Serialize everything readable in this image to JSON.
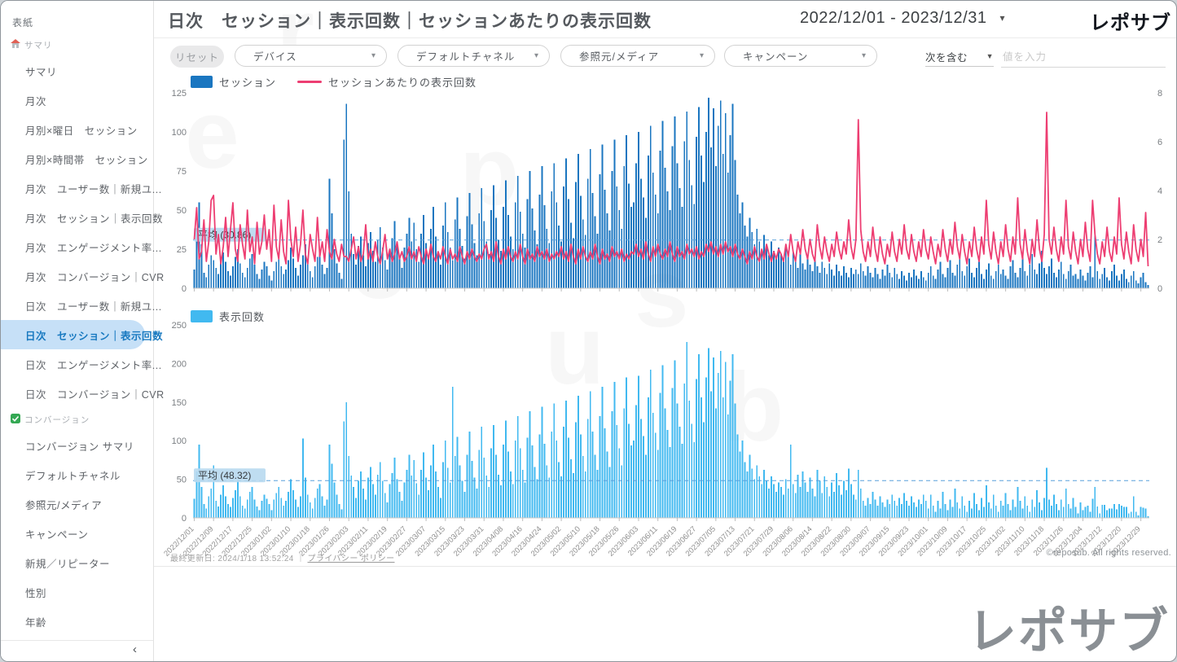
{
  "accent_colors": {
    "session_bar": "#1a76c0",
    "views_bar": "#41b9f0",
    "line_pink": "#ed3e72",
    "avg_line": "#58a0dc",
    "avg_badge_bg": "#b8d9f0",
    "active_item_bg": "#c6e0f7",
    "active_item_text": "#1879c0"
  },
  "watermark_text": "reposub",
  "sidebar": {
    "collapse_icon": "‹",
    "items": [
      {
        "type": "top",
        "label": "表紙"
      },
      {
        "type": "group",
        "icon": "home",
        "label": "サマリ"
      },
      {
        "type": "link",
        "label": "サマリ"
      },
      {
        "type": "link",
        "label": "月次"
      },
      {
        "type": "link",
        "label": "月別×曜日　セッション"
      },
      {
        "type": "link",
        "label": "月別×時間帯　セッション"
      },
      {
        "type": "link",
        "label": "月次　ユーザー数｜新規ユ..."
      },
      {
        "type": "link",
        "label": "月次　セッション｜表示回数"
      },
      {
        "type": "link",
        "label": "月次　エンゲージメント率..."
      },
      {
        "type": "link",
        "label": "月次　コンバージョン｜CVR"
      },
      {
        "type": "link",
        "label": "日次　ユーザー数｜新規ユ..."
      },
      {
        "type": "link",
        "label": "日次　セッション｜表示回数",
        "active": true
      },
      {
        "type": "link",
        "label": "日次　エンゲージメント率..."
      },
      {
        "type": "link",
        "label": "日次　コンバージョン｜CVR"
      },
      {
        "type": "group",
        "icon": "check",
        "label": "コンバージョン"
      },
      {
        "type": "link",
        "label": "コンバージョン サマリ"
      },
      {
        "type": "link",
        "label": "デフォルトチャネル"
      },
      {
        "type": "link",
        "label": "参照元/メディア"
      },
      {
        "type": "link",
        "label": "キャンペーン"
      },
      {
        "type": "link",
        "label": "新規／リピーター"
      },
      {
        "type": "link",
        "label": "性別"
      },
      {
        "type": "link",
        "label": "年齢"
      }
    ]
  },
  "header": {
    "title": "日次　セッション｜表示回数｜セッションあたりの表示回数",
    "date_range": "2022/12/01 - 2023/12/31",
    "caret": "▾",
    "logo_text": "レポサブ"
  },
  "filters": {
    "reset_label": "リセット",
    "dropdowns": [
      "デバイス",
      "デフォルトチャネル",
      "参照元/メディア",
      "キャンペーン"
    ],
    "condition": {
      "operator": "次を含む",
      "caret": "▼",
      "placeholder": "値を入力"
    }
  },
  "chart_data": [
    {
      "type": "bar",
      "name": "daily-sessions-with-views-per-session",
      "legend": [
        {
          "label": "セッション",
          "color": "#1a76c0",
          "marker": "square"
        },
        {
          "label": "セッションあたりの表示回数",
          "color": "#ed3e72",
          "marker": "line"
        }
      ],
      "left_axis": {
        "ticks": [
          0,
          25,
          50,
          75,
          100,
          125
        ],
        "max": 125
      },
      "right_axis": {
        "ticks": [
          0,
          2,
          4,
          6,
          8
        ],
        "max": 8
      },
      "average": {
        "label": "平均 (30.86)",
        "value": 30.86
      },
      "start_date": "2022/12/01",
      "end_date": "2023/12/31",
      "grid": false,
      "values_note": "daily session counts, estimated from bar heights",
      "values": [
        12,
        38,
        55,
        28,
        10,
        7,
        15,
        21,
        18,
        13,
        9,
        16,
        23,
        17,
        11,
        8,
        14,
        20,
        25,
        16,
        10,
        7,
        13,
        19,
        22,
        15,
        9,
        6,
        12,
        17,
        14,
        8,
        5,
        11,
        17,
        22,
        14,
        9,
        12,
        18,
        26,
        19,
        13,
        8,
        15,
        21,
        28,
        17,
        11,
        7,
        14,
        20,
        24,
        15,
        9,
        13,
        70,
        48,
        25,
        16,
        10,
        6,
        95,
        118,
        62,
        35,
        22,
        15,
        27,
        33,
        21,
        14,
        29,
        36,
        24,
        17,
        31,
        39,
        26,
        18,
        12,
        24,
        32,
        43,
        28,
        19,
        13,
        26,
        35,
        45,
        30,
        42,
        25,
        17,
        35,
        47,
        29,
        20,
        38,
        52,
        33,
        23,
        15,
        40,
        55,
        36,
        26,
        18,
        44,
        58,
        38,
        27,
        19,
        46,
        61,
        41,
        29,
        21,
        48,
        64,
        43,
        30,
        22,
        50,
        66,
        45,
        31,
        24,
        52,
        69,
        47,
        33,
        25,
        55,
        72,
        49,
        35,
        26,
        57,
        75,
        51,
        37,
        28,
        60,
        78,
        53,
        38,
        29,
        62,
        80,
        55,
        40,
        30,
        65,
        83,
        57,
        42,
        32,
        68,
        86,
        59,
        44,
        34,
        70,
        89,
        61,
        46,
        35,
        73,
        92,
        63,
        48,
        37,
        75,
        95,
        65,
        50,
        38,
        78,
        98,
        67,
        52,
        55,
        80,
        100,
        70,
        58,
        45,
        85,
        104,
        74,
        60,
        48,
        88,
        107,
        77,
        62,
        50,
        91,
        110,
        80,
        64,
        52,
        94,
        113,
        82,
        66,
        54,
        97,
        116,
        85,
        68,
        100,
        122,
        90,
        115,
        78,
        104,
        120,
        86,
        112,
        74,
        98,
        118,
        82,
        60,
        48,
        55,
        40,
        33,
        45,
        36,
        28,
        38,
        30,
        24,
        34,
        27,
        21,
        30,
        24,
        19,
        26,
        22,
        17,
        28,
        21,
        15,
        24,
        18,
        13,
        22,
        16,
        12,
        20,
        15,
        11,
        18,
        14,
        10,
        17,
        13,
        9,
        16,
        12,
        8,
        15,
        11,
        8,
        14,
        10,
        7,
        13,
        9,
        12,
        9,
        16,
        11,
        8,
        14,
        10,
        7,
        13,
        9,
        6,
        12,
        8,
        15,
        10,
        7,
        13,
        9,
        6,
        11,
        8,
        5,
        10,
        7,
        12,
        8,
        6,
        11,
        7,
        5,
        10,
        14,
        8,
        6,
        12,
        17,
        9,
        7,
        13,
        18,
        10,
        8,
        15,
        20,
        11,
        8,
        14,
        19,
        10,
        7,
        13,
        17,
        9,
        6,
        12,
        16,
        8,
        6,
        11,
        15,
        9,
        12,
        8,
        6,
        14,
        18,
        10,
        7,
        13,
        20,
        11,
        8,
        15,
        22,
        12,
        9,
        16,
        24,
        13,
        9,
        14,
        19,
        10,
        7,
        12,
        17,
        9,
        6,
        11,
        15,
        8,
        9,
        6,
        12,
        8,
        5,
        10,
        14,
        7,
        35,
        11,
        6,
        9,
        13,
        7,
        5,
        11,
        15,
        8,
        5,
        9,
        12,
        6,
        4,
        8,
        11,
        5,
        3,
        7,
        10,
        4,
        2
      ],
      "line_values_note": "views per session (right axis), estimated",
      "line_values": [
        2.0,
        3.3,
        1.2,
        1.5,
        2.8,
        1.1,
        1.9,
        3.6,
        3.8,
        1.4,
        2.2,
        1.0,
        1.7,
        2.9,
        1.3,
        2.4,
        3.5,
        1.6,
        1.1,
        2.6,
        1.8,
        1.2,
        3.2,
        1.5,
        2.1,
        1.0,
        2.7,
        1.4,
        1.9,
        3.0,
        1.6,
        2.4,
        1.1,
        3.4,
        1.7,
        1.2,
        2.8,
        1.5,
        1.0,
        3.6,
        2.0,
        1.3,
        2.5,
        1.1,
        1.8,
        3.2,
        1.4,
        1.0,
        2.2,
        1.6,
        1.1,
        2.9,
        1.3,
        1.9,
        1.1,
        2.4,
        1.5,
        1.2,
        2.0,
        1.4,
        1.1,
        1.8,
        1.3,
        1.3,
        1.1,
        1.6,
        2.1,
        1.2,
        1.7,
        1.1,
        1.4,
        2.6,
        1.2,
        1.6,
        1.1,
        1.9,
        1.3,
        1.0,
        1.5,
        2.2,
        1.2,
        1.6,
        1.1,
        1.4,
        1.9,
        1.2,
        1.5,
        1.1,
        1.3,
        1.7,
        1.2,
        1.5,
        1.1,
        1.7,
        1.3,
        1.0,
        1.6,
        1.2,
        1.8,
        1.3,
        1.1,
        1.5,
        1.2,
        1.7,
        1.3,
        1.0,
        1.6,
        1.2,
        1.4,
        1.1,
        1.7,
        1.3,
        1.0,
        1.5,
        1.2,
        1.6,
        1.3,
        1.1,
        1.4,
        1.2,
        1.6,
        1.8,
        1.2,
        1.5,
        1.1,
        1.9,
        1.3,
        1.0,
        1.6,
        1.2,
        1.7,
        1.3,
        1.1,
        1.5,
        1.2,
        1.8,
        1.3,
        1.0,
        1.6,
        1.2,
        1.4,
        1.1,
        1.7,
        1.3,
        1.5,
        1.2,
        1.6,
        1.1,
        1.4,
        1.2,
        1.5,
        1.3,
        1.7,
        1.2,
        1.5,
        1.1,
        1.8,
        1.3,
        1.0,
        1.6,
        1.2,
        1.7,
        1.3,
        1.1,
        1.5,
        1.2,
        1.8,
        1.3,
        1.0,
        1.6,
        1.2,
        1.4,
        1.1,
        1.7,
        1.3,
        1.5,
        1.2,
        1.6,
        1.1,
        1.4,
        1.2,
        1.5,
        1.4,
        1.8,
        1.3,
        1.6,
        1.2,
        1.9,
        1.4,
        1.1,
        1.7,
        1.3,
        1.8,
        1.4,
        1.2,
        1.6,
        1.3,
        1.9,
        1.4,
        1.1,
        1.7,
        1.3,
        1.5,
        1.2,
        1.8,
        1.4,
        1.6,
        1.3,
        1.7,
        1.2,
        1.5,
        1.3,
        1.8,
        1.5,
        1.9,
        1.4,
        1.7,
        1.3,
        1.8,
        1.4,
        1.9,
        1.5,
        1.7,
        1.3,
        1.8,
        1.4,
        1.2,
        1.6,
        1.3,
        1.0,
        1.5,
        1.2,
        1.7,
        1.3,
        1.1,
        1.6,
        1.2,
        1.8,
        1.4,
        1.1,
        1.5,
        1.2,
        1.6,
        1.4,
        1.1,
        1.8,
        1.3,
        2.2,
        1.5,
        1.1,
        1.9,
        1.4,
        2.4,
        1.6,
        1.2,
        2.0,
        1.4,
        1.1,
        2.6,
        1.7,
        1.2,
        2.1,
        1.5,
        1.1,
        1.8,
        1.3,
        2.3,
        1.6,
        1.2,
        1.9,
        1.4,
        2.8,
        1.7,
        1.2,
        2.0,
        6.9,
        2.4,
        1.5,
        1.1,
        1.9,
        1.3,
        2.5,
        1.6,
        1.1,
        2.1,
        1.4,
        1.0,
        1.8,
        1.3,
        2.3,
        1.5,
        1.1,
        2.0,
        1.4,
        2.6,
        1.6,
        1.2,
        2.2,
        1.5,
        1.1,
        1.9,
        1.3,
        2.4,
        1.6,
        1.2,
        2.1,
        1.5,
        1.0,
        1.8,
        1.3,
        2.4,
        1.6,
        1.1,
        2.0,
        1.4,
        2.7,
        1.7,
        1.2,
        2.2,
        1.5,
        1.0,
        1.9,
        1.3,
        2.5,
        1.6,
        1.1,
        2.1,
        1.4,
        3.6,
        1.8,
        1.2,
        2.3,
        1.5,
        1.0,
        1.9,
        1.3,
        2.6,
        1.6,
        1.1,
        2.1,
        1.4,
        3.7,
        1.8,
        1.2,
        2.4,
        1.5,
        1.0,
        2.0,
        1.3,
        2.8,
        1.6,
        1.1,
        2.2,
        7.2,
        2.0,
        1.4,
        2.5,
        1.6,
        1.1,
        2.1,
        1.4,
        3.6,
        1.7,
        1.2,
        2.3,
        1.5,
        1.0,
        2.0,
        1.3,
        2.7,
        1.6,
        1.1,
        3.6,
        2.2,
        1.4,
        1.0,
        1.9,
        1.3,
        2.5,
        1.5,
        1.1,
        2.1,
        1.4,
        3.7,
        1.8,
        1.2,
        2.3,
        1.5,
        1.0,
        2.6,
        1.6,
        1.1,
        2.0,
        1.3,
        3.1,
        0.9
      ],
      "x_tick_labels": [
        "2022/12/01",
        "2022/12/09",
        "2022/12/17",
        "2022/12/25",
        "2023/01/02",
        "2023/01/10",
        "2023/01/18",
        "2023/01/26",
        "2023/02/03",
        "2023/02/11",
        "2023/02/19",
        "2023/02/27",
        "2023/03/07",
        "2023/03/15",
        "2023/03/23",
        "2023/03/31",
        "2023/04/08",
        "2023/04/16",
        "2023/04/24",
        "2023/05/02",
        "2023/05/10",
        "2023/05/18",
        "2023/05/26",
        "2023/06/03",
        "2023/06/11",
        "2023/06/19",
        "2023/06/27",
        "2023/07/05",
        "2023/07/13",
        "2023/07/21",
        "2023/07/29",
        "2023/08/06",
        "2023/08/14",
        "2023/08/22",
        "2023/08/30",
        "2023/09/07",
        "2023/09/15",
        "2023/09/23",
        "2023/10/01",
        "2023/10/09",
        "2023/10/17",
        "2023/10/25",
        "2023/11/02",
        "2023/11/10",
        "2023/11/18",
        "2023/11/26",
        "2023/12/04",
        "2023/12/12",
        "2023/12/20",
        "2023/12/29"
      ]
    },
    {
      "type": "bar",
      "name": "daily-page-views",
      "legend": [
        {
          "label": "表示回数",
          "color": "#41b9f0",
          "marker": "square"
        }
      ],
      "left_axis": {
        "ticks": [
          0,
          50,
          100,
          150,
          200,
          250
        ],
        "max": 250
      },
      "average": {
        "label": "平均 (48.32)",
        "value": 48.32
      },
      "grid": false,
      "values_note": "daily page views, estimated from bar heights",
      "values": [
        25,
        60,
        95,
        40,
        18,
        12,
        28,
        38,
        68,
        22,
        15,
        30,
        42,
        28,
        18,
        14,
        26,
        36,
        48,
        28,
        16,
        12,
        24,
        34,
        40,
        24,
        15,
        10,
        22,
        30,
        25,
        18,
        10,
        24,
        32,
        40,
        26,
        16,
        22,
        34,
        50,
        36,
        24,
        14,
        28,
        103,
        52,
        30,
        20,
        12,
        26,
        38,
        44,
        28,
        16,
        24,
        95,
        70,
        46,
        30,
        18,
        11,
        125,
        150,
        80,
        55,
        40,
        26,
        48,
        60,
        38,
        24,
        52,
        66,
        44,
        30,
        56,
        72,
        48,
        32,
        20,
        44,
        58,
        78,
        50,
        34,
        22,
        46,
        62,
        82,
        55,
        75,
        45,
        30,
        62,
        85,
        52,
        36,
        68,
        95,
        60,
        40,
        26,
        72,
        100,
        65,
        46,
        170,
        80,
        105,
        68,
        48,
        34,
        82,
        112,
        74,
        52,
        38,
        88,
        118,
        78,
        55,
        40,
        90,
        120,
        82,
        56,
        42,
        95,
        126,
        86,
        60,
        44,
        100,
        132,
        90,
        62,
        46,
        104,
        138,
        94,
        66,
        50,
        108,
        144,
        96,
        68,
        52,
        112,
        148,
        100,
        72,
        54,
        118,
        152,
        104,
        76,
        58,
        124,
        158,
        108,
        80,
        60,
        128,
        164,
        112,
        82,
        62,
        132,
        170,
        116,
        86,
        66,
        138,
        176,
        120,
        90,
        68,
        142,
        182,
        122,
        94,
        100,
        146,
        184,
        128,
        106,
        82,
        156,
        192,
        136,
        110,
        88,
        162,
        198,
        142,
        114,
        92,
        168,
        204,
        148,
        118,
        96,
        174,
        228,
        152,
        122,
        98,
        180,
        212,
        156,
        124,
        182,
        220,
        164,
        208,
        142,
        188,
        216,
        156,
        202,
        134,
        178,
        212,
        148,
        108,
        86,
        100,
        72,
        60,
        82,
        64,
        50,
        68,
        54,
        44,
        62,
        48,
        38,
        54,
        44,
        34,
        46,
        40,
        30,
        50,
        38,
        95,
        44,
        32,
        56,
        40,
        60,
        46,
        34,
        52,
        38,
        28,
        62,
        48,
        32,
        54,
        40,
        28,
        46,
        34,
        58,
        42,
        30,
        48,
        36,
        64,
        44,
        30,
        24,
        62,
        38,
        22,
        16,
        26,
        18,
        34,
        24,
        16,
        28,
        20,
        14,
        24,
        18,
        30,
        22,
        16,
        26,
        18,
        32,
        22,
        16,
        28,
        20,
        14,
        24,
        18,
        30,
        22,
        12,
        30,
        16,
        8,
        22,
        12,
        34,
        18,
        10,
        24,
        14,
        38,
        20,
        12,
        28,
        16,
        8,
        22,
        12,
        32,
        18,
        10,
        26,
        14,
        42,
        20,
        12,
        30,
        16,
        8,
        22,
        16,
        32,
        18,
        10,
        24,
        14,
        40,
        22,
        12,
        28,
        16,
        8,
        24,
        14,
        36,
        20,
        10,
        26,
        65,
        24,
        16,
        30,
        18,
        10,
        24,
        14,
        38,
        18,
        12,
        26,
        14,
        6,
        20,
        10,
        14,
        16,
        8,
        25,
        40,
        15,
        6,
        17,
        17,
        10,
        12,
        12,
        18,
        11,
        18,
        16,
        14,
        14,
        6,
        8,
        28,
        8,
        3,
        14,
        13,
        12,
        2
      ]
    }
  ],
  "footer": {
    "last_updated": "最終更新日: 2024/1/18 13:52:24",
    "separator": "｜",
    "privacy_link": "プライバシー ポリシー",
    "copyright": "©reposub. All rights reserved."
  },
  "bottom": {
    "logo_text": "レポサブ"
  }
}
